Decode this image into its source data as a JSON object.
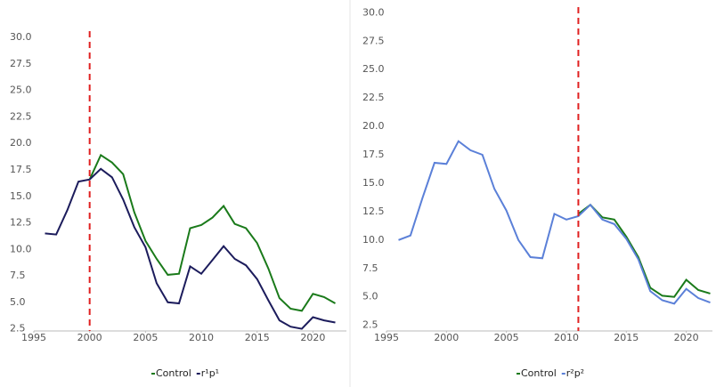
{
  "chart_data": [
    {
      "type": "line",
      "x": [
        1996,
        1997,
        1998,
        1999,
        2000,
        2001,
        2002,
        2003,
        2004,
        2005,
        2006,
        2007,
        2008,
        2009,
        2010,
        2011,
        2012,
        2013,
        2014,
        2015,
        2016,
        2017,
        2018,
        2019,
        2020,
        2021,
        2022
      ],
      "series": [
        {
          "name": "Control",
          "color": "#1a7a1a",
          "values": [
            null,
            null,
            null,
            null,
            16.6,
            18.9,
            18.2,
            17.1,
            13.5,
            10.8,
            9.1,
            7.6,
            7.7,
            12.0,
            12.3,
            13.0,
            14.1,
            12.4,
            12.0,
            10.6,
            8.2,
            5.4,
            4.4,
            4.2,
            5.8,
            5.5,
            4.9
          ]
        },
        {
          "name": "r¹p¹",
          "color": "#1c1c5c",
          "values": [
            11.5,
            11.4,
            13.7,
            16.4,
            16.6,
            17.6,
            16.8,
            14.7,
            12.1,
            10.2,
            6.8,
            5.0,
            4.9,
            8.4,
            7.7,
            9.0,
            10.3,
            9.1,
            8.5,
            7.2,
            5.2,
            3.3,
            2.7,
            2.5,
            3.6,
            3.3,
            3.1
          ]
        }
      ],
      "xlim": [
        1995,
        2023
      ],
      "ylim": [
        2.3,
        30.6
      ],
      "xticks": [
        1995,
        2000,
        2005,
        2010,
        2015,
        2020
      ],
      "yticks": [
        {
          "value": 2.5,
          "label": "2.5"
        },
        {
          "value": 5,
          "label": "5.0"
        },
        {
          "value": 7.5,
          "label": "7.5"
        },
        {
          "value": 10,
          "label": "10.0"
        },
        {
          "value": 12.5,
          "label": "12.5"
        },
        {
          "value": 15,
          "label": "15.0"
        },
        {
          "value": 17.5,
          "label": "17.5"
        },
        {
          "value": 20,
          "label": "20.0"
        },
        {
          "value": 22.5,
          "label": "22.5"
        },
        {
          "value": 25,
          "label": "25.0"
        },
        {
          "value": 27.5,
          "label": "27.5"
        },
        {
          "value": 30,
          "label": "30.0"
        }
      ],
      "vline": 2000,
      "vline_color": "#e02020"
    },
    {
      "type": "line",
      "x": [
        1996,
        1997,
        1998,
        1999,
        2000,
        2001,
        2002,
        2003,
        2004,
        2005,
        2006,
        2007,
        2008,
        2009,
        2010,
        2011,
        2012,
        2013,
        2014,
        2015,
        2016,
        2017,
        2018,
        2019,
        2020,
        2021,
        2022
      ],
      "series": [
        {
          "name": "Control",
          "color": "#1a7a1a",
          "values": [
            null,
            null,
            null,
            null,
            null,
            null,
            null,
            null,
            null,
            null,
            null,
            null,
            null,
            null,
            null,
            12.3,
            13.1,
            12.0,
            11.8,
            10.3,
            8.5,
            5.8,
            5.1,
            5.0,
            6.5,
            5.6,
            5.3
          ]
        },
        {
          "name": "r²p²",
          "color": "#5b80d8",
          "values": [
            10.0,
            10.4,
            13.7,
            16.8,
            16.7,
            18.7,
            17.9,
            17.5,
            14.5,
            12.6,
            10.0,
            8.5,
            8.4,
            12.3,
            11.8,
            12.1,
            13.1,
            11.8,
            11.4,
            10.1,
            8.3,
            5.5,
            4.7,
            4.4,
            5.7,
            4.9,
            4.5
          ]
        }
      ],
      "xlim": [
        1995,
        2023
      ],
      "ylim": [
        2.0,
        30.5
      ],
      "xticks": [
        1995,
        2000,
        2005,
        2010,
        2015,
        2020
      ],
      "yticks": [
        {
          "value": 2.5,
          "label": "2.5"
        },
        {
          "value": 5,
          "label": "5.0"
        },
        {
          "value": 7.5,
          "label": "7.5"
        },
        {
          "value": 10,
          "label": "10.0"
        },
        {
          "value": 12.5,
          "label": "12.5"
        },
        {
          "value": 15,
          "label": "15.0"
        },
        {
          "value": 17.5,
          "label": "17.5"
        },
        {
          "value": 20,
          "label": "20.0"
        },
        {
          "value": 22.5,
          "label": "22.5"
        },
        {
          "value": 25,
          "label": "25.0"
        },
        {
          "value": 27.5,
          "label": "27.5"
        },
        {
          "value": 30,
          "label": "30.0"
        }
      ],
      "vline": 2011,
      "vline_color": "#e02020"
    }
  ]
}
